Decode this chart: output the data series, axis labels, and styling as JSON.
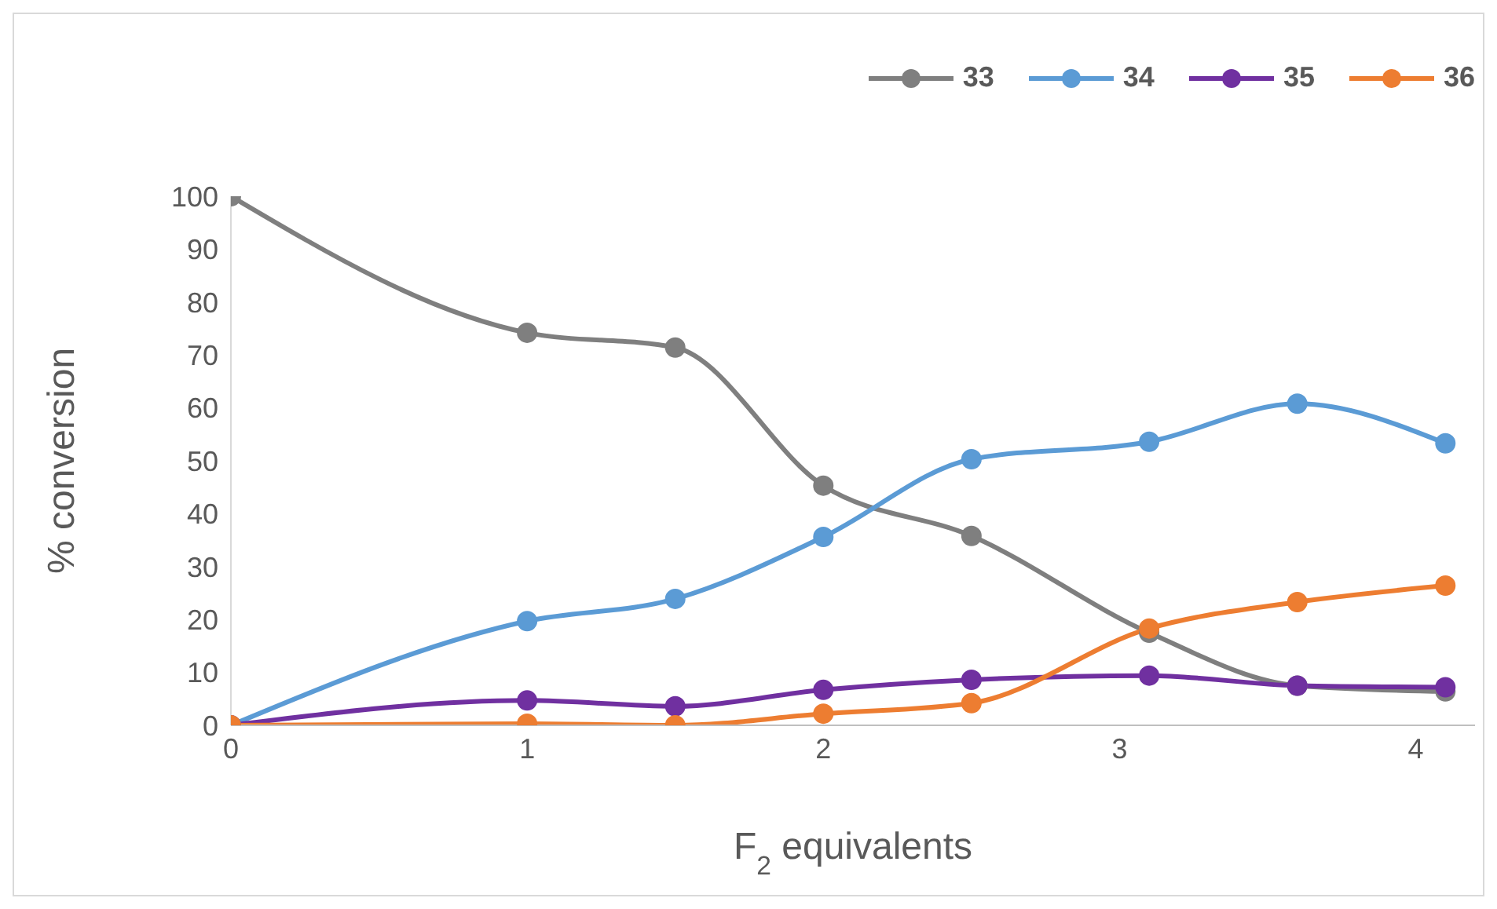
{
  "chart_data": {
    "type": "line",
    "xlabel": "F$_{2}$ equivalents",
    "ylabel": "% conversion",
    "x": [
      0,
      1,
      1.5,
      2,
      2.5,
      3.1,
      3.6,
      4.1
    ],
    "series": [
      {
        "name": "33",
        "color": "#7f7f7f",
        "values": [
          100,
          74.2,
          71.4,
          45.3,
          35.8,
          17.5,
          7.5,
          6.4
        ]
      },
      {
        "name": "34",
        "color": "#5b9bd5",
        "values": [
          0,
          19.7,
          23.9,
          35.6,
          50.3,
          53.6,
          60.8,
          53.3
        ]
      },
      {
        "name": "35",
        "color": "#7030a0",
        "values": [
          0,
          4.7,
          3.6,
          6.7,
          8.6,
          9.4,
          7.5,
          7.2
        ]
      },
      {
        "name": "36",
        "color": "#ed7d31",
        "values": [
          0,
          0.3,
          0,
          2.2,
          4.2,
          18.3,
          23.3,
          26.4
        ]
      }
    ],
    "xlim": [
      0,
      4.2
    ],
    "xticks": [
      0,
      1,
      2,
      3,
      4
    ],
    "ylim": [
      0,
      100
    ],
    "yticks": [
      0,
      10,
      20,
      30,
      40,
      50,
      60,
      70,
      80,
      90,
      100
    ],
    "grid": false,
    "legend": "top right",
    "marker": "circle",
    "line_style": "solid"
  }
}
